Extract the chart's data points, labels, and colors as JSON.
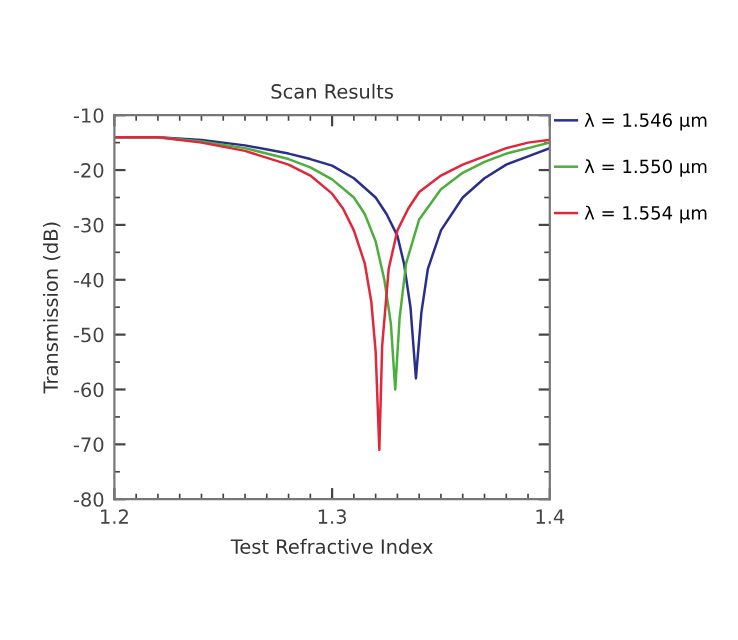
{
  "chart_data": {
    "type": "line",
    "title": "Scan Results",
    "xlabel": "Test Refractive Index",
    "ylabel": "Transmission (dB)",
    "xlim": [
      1.2,
      1.4
    ],
    "xticks": [
      1.2,
      1.3,
      1.4
    ],
    "ylim": [
      -80,
      -10
    ],
    "yticks": [
      -80,
      -70,
      -60,
      -50,
      -40,
      -30,
      -20,
      -10
    ],
    "legend": "right",
    "line_style": "solid",
    "marker": "none",
    "grid": false,
    "series": [
      {
        "name": "λ = 1.546 µm",
        "color": "#2a2f8c",
        "x": [
          1.2,
          1.22,
          1.24,
          1.26,
          1.28,
          1.29,
          1.3,
          1.31,
          1.32,
          1.325,
          1.33,
          1.333,
          1.336,
          1.3385,
          1.341,
          1.344,
          1.35,
          1.36,
          1.37,
          1.38,
          1.39,
          1.4
        ],
        "values": [
          -14,
          -14,
          -14.5,
          -15.5,
          -17,
          -18,
          -19.2,
          -21.5,
          -25,
          -28,
          -32,
          -37,
          -45,
          -58,
          -46,
          -38,
          -31,
          -25,
          -21.5,
          -19,
          -17.5,
          -16
        ]
      },
      {
        "name": "λ = 1.550 µm",
        "color": "#4caf3c",
        "x": [
          1.2,
          1.22,
          1.24,
          1.26,
          1.28,
          1.29,
          1.3,
          1.31,
          1.315,
          1.32,
          1.324,
          1.327,
          1.329,
          1.331,
          1.334,
          1.34,
          1.35,
          1.36,
          1.37,
          1.38,
          1.39,
          1.4
        ],
        "values": [
          -14,
          -14,
          -14.8,
          -16,
          -18,
          -19.5,
          -21.7,
          -25,
          -28,
          -33,
          -40,
          -48,
          -60,
          -47,
          -37,
          -29,
          -23.5,
          -20.5,
          -18.5,
          -17,
          -16,
          -15
        ]
      },
      {
        "name": "λ = 1.554 µm",
        "color": "#e0283c",
        "x": [
          1.2,
          1.22,
          1.24,
          1.26,
          1.28,
          1.29,
          1.3,
          1.305,
          1.31,
          1.315,
          1.318,
          1.32,
          1.3217,
          1.323,
          1.326,
          1.33,
          1.335,
          1.34,
          1.35,
          1.36,
          1.37,
          1.38,
          1.39,
          1.4
        ],
        "values": [
          -14,
          -14,
          -15,
          -16.5,
          -19,
          -21,
          -24.3,
          -27,
          -31,
          -37,
          -44,
          -53,
          -71,
          -52,
          -38,
          -31,
          -27,
          -24,
          -21,
          -19,
          -17.5,
          -16,
          -15,
          -14.5
        ]
      }
    ]
  }
}
